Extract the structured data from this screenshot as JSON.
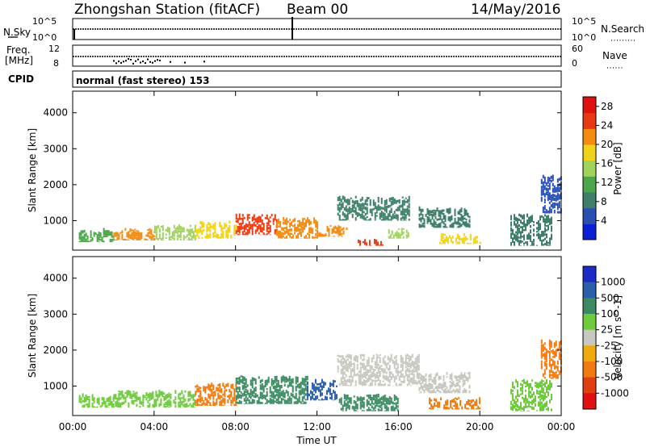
{
  "header": {
    "station": "Zhongshan Station (fitACF)",
    "beam": "Beam 00",
    "date": "14/May/2016"
  },
  "aux_panels": {
    "nsky_label": "N.Sky",
    "nsky_ticks": [
      "10^5",
      "10^0"
    ],
    "nsearch_label": "N.Search",
    "nsearch_ticks": [
      "10^5",
      "10^0"
    ],
    "freq_label_line1": "Freq.",
    "freq_label_line2": "[MHz]",
    "freq_ticks": [
      "12",
      "8"
    ],
    "nave_label": "Nave",
    "nave_ticks": [
      "60",
      "0"
    ],
    "cpid_label": "CPID",
    "cpid_text": "normal (fast stereo) 153"
  },
  "colors": {
    "power_scale": [
      "#0a1fd6",
      "#2a4fb2",
      "#3f7f6a",
      "#4ea64a",
      "#9fd35b",
      "#f0d21a",
      "#f58b0f",
      "#e53a12",
      "#e01010"
    ],
    "velocity_scale": [
      "#1a2bc8",
      "#2b5faa",
      "#3d8a62",
      "#6ecc3c",
      "#c8c8c0",
      "#f0aa10",
      "#f07a10",
      "#e04010",
      "#e01010"
    ]
  },
  "chart_data": [
    {
      "type": "heatmap",
      "title": "",
      "xlabel": "Time UT",
      "ylabel": "Slant Range [km]",
      "x_ticks": [
        "00:00",
        "04:00",
        "08:00",
        "12:00",
        "16:00",
        "20:00",
        "00:00"
      ],
      "xlim_hours": [
        0,
        24
      ],
      "y_ticks": [
        "1000",
        "2000",
        "3000",
        "4000"
      ],
      "ylim": [
        180,
        4600
      ],
      "colorbar_label": "Power [dB]",
      "colorbar_ticks": [
        "4",
        "8",
        "12",
        "16",
        "20",
        "24",
        "28"
      ],
      "clim": [
        0,
        30
      ],
      "regions": [
        {
          "t0": 0.3,
          "t1": 2.0,
          "r0": 400,
          "r1": 800,
          "value": 10
        },
        {
          "t0": 2.0,
          "t1": 4.0,
          "r0": 450,
          "r1": 800,
          "value": 22
        },
        {
          "t0": 4.0,
          "t1": 6.0,
          "r0": 450,
          "r1": 900,
          "value": 16
        },
        {
          "t0": 6.0,
          "t1": 8.0,
          "r0": 500,
          "r1": 1000,
          "value": 18
        },
        {
          "t0": 8.0,
          "t1": 10.0,
          "r0": 600,
          "r1": 1200,
          "value": 24
        },
        {
          "t0": 10.0,
          "t1": 12.0,
          "r0": 500,
          "r1": 1100,
          "value": 20
        },
        {
          "t0": 12.0,
          "t1": 13.5,
          "r0": 550,
          "r1": 900,
          "value": 22
        },
        {
          "t0": 13.0,
          "t1": 16.5,
          "r0": 1000,
          "r1": 1700,
          "value": 9
        },
        {
          "t0": 14.0,
          "t1": 15.2,
          "r0": 300,
          "r1": 500,
          "value": 26
        },
        {
          "t0": 15.5,
          "t1": 16.5,
          "r0": 500,
          "r1": 800,
          "value": 14
        },
        {
          "t0": 17.0,
          "t1": 19.5,
          "r0": 800,
          "r1": 1400,
          "value": 7
        },
        {
          "t0": 18.0,
          "t1": 20.0,
          "r0": 350,
          "r1": 650,
          "value": 19
        },
        {
          "t0": 21.5,
          "t1": 23.5,
          "r0": 300,
          "r1": 1200,
          "value": 8
        },
        {
          "t0": 23.0,
          "t1": 24.0,
          "r0": 1200,
          "r1": 2300,
          "value": 6
        }
      ]
    },
    {
      "type": "heatmap",
      "title": "",
      "xlabel": "Time UT",
      "ylabel": "Slant Range [km]",
      "x_ticks": [
        "00:00",
        "04:00",
        "08:00",
        "12:00",
        "16:00",
        "20:00",
        "00:00"
      ],
      "xlim_hours": [
        0,
        24
      ],
      "y_ticks": [
        "1000",
        "2000",
        "3000",
        "4000"
      ],
      "ylim": [
        180,
        4600
      ],
      "colorbar_label": "Velocity [m s^-1]",
      "colorbar_ticks": [
        "1000",
        "500",
        "100",
        "25",
        "-25",
        "-100",
        "-500",
        "-1000"
      ],
      "regions": [
        {
          "t0": 0.3,
          "t1": 2.0,
          "r0": 400,
          "r1": 800,
          "value": 60
        },
        {
          "t0": 2.0,
          "t1": 6.0,
          "r0": 400,
          "r1": 900,
          "value": 80
        },
        {
          "t0": 6.0,
          "t1": 8.0,
          "r0": 450,
          "r1": 1100,
          "value": -150
        },
        {
          "t0": 8.0,
          "t1": 11.5,
          "r0": 500,
          "r1": 1300,
          "value": 400
        },
        {
          "t0": 11.5,
          "t1": 13.0,
          "r0": 600,
          "r1": 1200,
          "value": 600
        },
        {
          "t0": 13.0,
          "t1": 17.0,
          "r0": 1000,
          "r1": 1900,
          "value": 0
        },
        {
          "t0": 13.0,
          "t1": 16.0,
          "r0": 300,
          "r1": 800,
          "value": 150
        },
        {
          "t0": 17.0,
          "t1": 19.5,
          "r0": 800,
          "r1": 1400,
          "value": 0
        },
        {
          "t0": 17.5,
          "t1": 20.0,
          "r0": 350,
          "r1": 700,
          "value": -150
        },
        {
          "t0": 21.5,
          "t1": 23.5,
          "r0": 300,
          "r1": 1200,
          "value": 60
        },
        {
          "t0": 23.0,
          "t1": 24.0,
          "r0": 1200,
          "r1": 2300,
          "value": -150
        }
      ]
    }
  ]
}
